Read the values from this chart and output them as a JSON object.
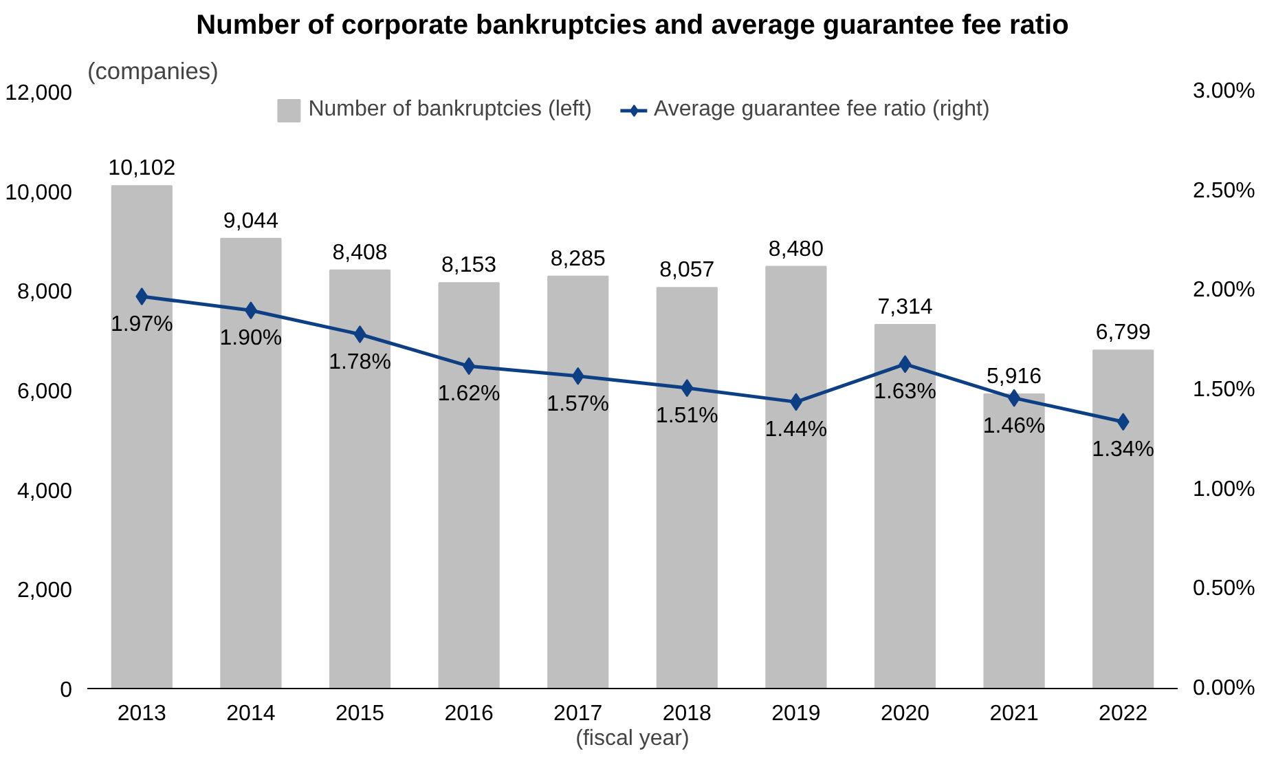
{
  "chart_data": {
    "type": "bar",
    "title": "Number of corporate bankruptcies and average guarantee fee ratio",
    "ylabel": "(companies)",
    "xlabel": "(fiscal year)",
    "categories": [
      "2013",
      "2014",
      "2015",
      "2016",
      "2017",
      "2018",
      "2019",
      "2020",
      "2021",
      "2022"
    ],
    "series": [
      {
        "name": "Number of bankruptcies (left)",
        "color": "#bfbfbf",
        "values": [
          10102,
          9044,
          8408,
          8153,
          8285,
          8057,
          8480,
          7314,
          5916,
          6799
        ],
        "value_labels": [
          "10,102",
          "9,044",
          "8,408",
          "8,153",
          "8,285",
          "8,057",
          "8,480",
          "7,314",
          "5,916",
          "6,799"
        ]
      },
      {
        "name": "Average guarantee fee ratio (right)",
        "type": "line",
        "axis": "y2",
        "color": "#0d3f84",
        "marker": "diamond",
        "values": [
          1.97,
          1.9,
          1.78,
          1.62,
          1.57,
          1.51,
          1.44,
          1.63,
          1.46,
          1.34
        ],
        "value_labels": [
          "1.97%",
          "1.90%",
          "1.78%",
          "1.62%",
          "1.57%",
          "1.51%",
          "1.44%",
          "1.63%",
          "1.46%",
          "1.34%"
        ]
      }
    ],
    "ylim": [
      0,
      12000
    ],
    "yticks": [
      {
        "value": 0,
        "label": "0"
      },
      {
        "value": 2000,
        "label": "2,000"
      },
      {
        "value": 4000,
        "label": "4,000"
      },
      {
        "value": 6000,
        "label": "6,000"
      },
      {
        "value": 8000,
        "label": "8,000"
      },
      {
        "value": 10000,
        "label": "10,000"
      },
      {
        "value": 12000,
        "label": "12,000"
      }
    ],
    "y2lim": [
      0,
      3
    ],
    "y2ticks": [
      {
        "value": 0,
        "label": "0.00%"
      },
      {
        "value": 0.5,
        "label": "0.50%"
      },
      {
        "value": 1,
        "label": "1.00%"
      },
      {
        "value": 1.5,
        "label": "1.50%"
      },
      {
        "value": 2,
        "label": "2.00%"
      },
      {
        "value": 2.5,
        "label": "2.50%"
      },
      {
        "value": 3,
        "label": "3.00%"
      }
    ],
    "grid": false,
    "legend": "top"
  }
}
